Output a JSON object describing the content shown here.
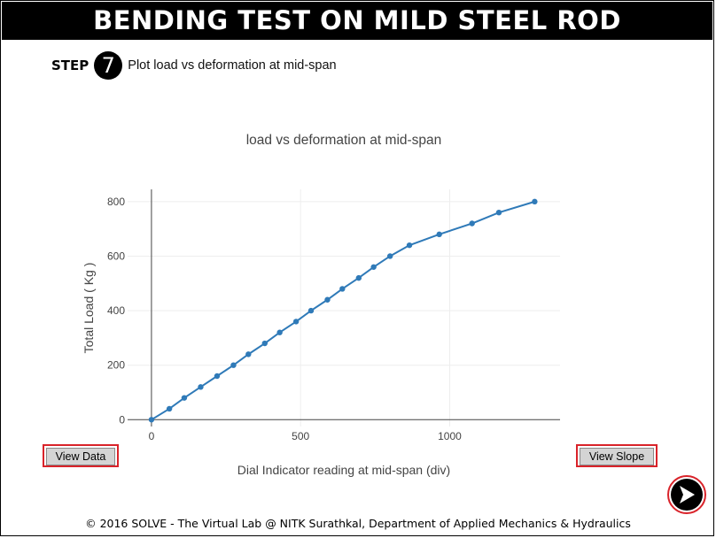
{
  "header": {
    "title": "BENDING TEST ON MILD STEEL ROD"
  },
  "step": {
    "label": "STEP",
    "number": "7",
    "instruction": "Plot load vs deformation at mid-span"
  },
  "buttons": {
    "view_data": "View Data",
    "view_slope": "View Slope",
    "next_icon": "next-arrow-icon"
  },
  "footer": {
    "text": "© 2016 SOLVE - The Virtual Lab @ NITK Surathkal, Department of Applied Mechanics & Hydraulics"
  },
  "colors": {
    "series": "#2f7ab8",
    "accent": "#d9232a",
    "banner": "#000000"
  },
  "chart_data": {
    "type": "line",
    "title": "load vs deformation at mid-span",
    "xlabel": "Dial Indicator reading at mid-span (div)",
    "ylabel": "Total Load ( Kg )",
    "xlim": [
      -80,
      1370
    ],
    "ylim": [
      -25,
      845
    ],
    "xticks": [
      0,
      500,
      1000
    ],
    "yticks": [
      0,
      200,
      400,
      600,
      800
    ],
    "grid": true,
    "series": [
      {
        "x": [
          0,
          60,
          110,
          165,
          220,
          275,
          325,
          380,
          430,
          485,
          535,
          590,
          640,
          695,
          745,
          800,
          865,
          965,
          1075,
          1165,
          1285
        ],
        "y": [
          0,
          40,
          80,
          120,
          160,
          200,
          240,
          280,
          320,
          360,
          400,
          440,
          480,
          520,
          560,
          600,
          640,
          680,
          720,
          760,
          800
        ]
      }
    ]
  }
}
